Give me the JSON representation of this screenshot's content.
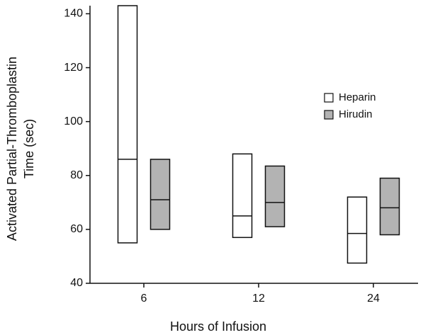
{
  "chart_data": {
    "type": "floating-box",
    "xlabel": "Hours of Infusion",
    "ylabel": [
      "Activated Partial-Thromboplastin",
      "Time (sec)"
    ],
    "categories": [
      "6",
      "12",
      "24"
    ],
    "series": [
      {
        "name": "Heparin",
        "color": "#ffffff",
        "low": [
          55,
          57,
          47.5
        ],
        "median": [
          86,
          65,
          58.5
        ],
        "high": [
          143,
          88,
          72
        ]
      },
      {
        "name": "Hirudin",
        "color": "#b3b3b3",
        "low": [
          60,
          61,
          58
        ],
        "median": [
          71,
          70,
          68
        ],
        "high": [
          86,
          83.5,
          79
        ]
      }
    ],
    "ylim": [
      40,
      143
    ],
    "yticks": [
      40,
      60,
      80,
      100,
      120,
      140
    ],
    "legend": "right"
  }
}
